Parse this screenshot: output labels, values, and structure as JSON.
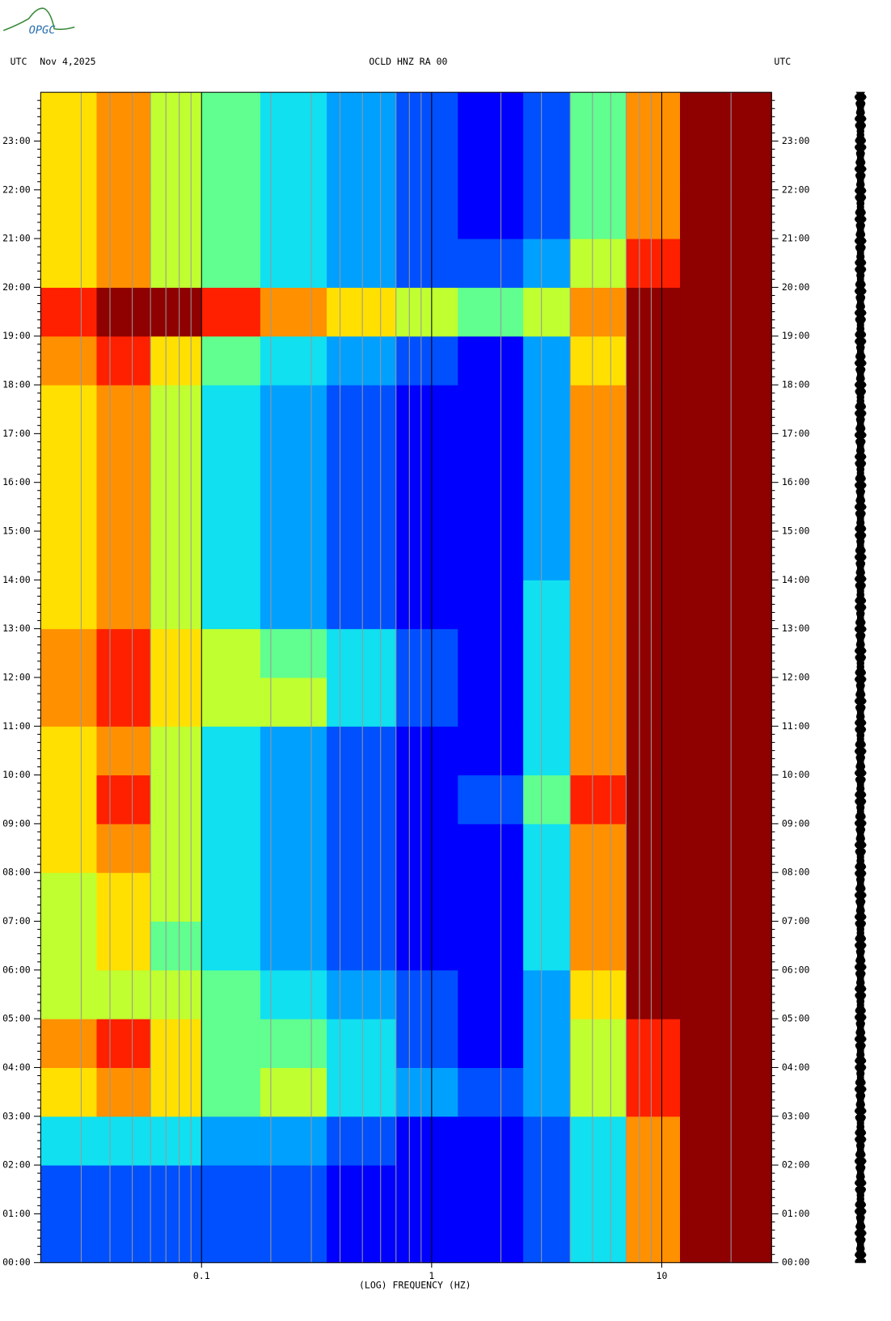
{
  "chart_data": {
    "type": "spectrogram",
    "logo": "OPGC",
    "time_zone": "UTC",
    "date": "Nov 4,2025",
    "title": "OCLD HNZ RA 00",
    "right_time_zone": "UTC",
    "x_label": "(LOG) FREQUENCY (HZ)",
    "x_scale": "log",
    "xlim": [
      0.02,
      30
    ],
    "xticks": [
      0.1,
      1,
      10
    ],
    "ylim": [
      0,
      24
    ],
    "yticks": [
      {
        "value": 0,
        "label": "00:00"
      },
      {
        "value": 1,
        "label": "01:00"
      },
      {
        "value": 2,
        "label": "02:00"
      },
      {
        "value": 3,
        "label": "03:00"
      },
      {
        "value": 4,
        "label": "04:00"
      },
      {
        "value": 5,
        "label": "05:00"
      },
      {
        "value": 6,
        "label": "06:00"
      },
      {
        "value": 7,
        "label": "07:00"
      },
      {
        "value": 8,
        "label": "08:00"
      },
      {
        "value": 9,
        "label": "09:00"
      },
      {
        "value": 10,
        "label": "10:00"
      },
      {
        "value": 11,
        "label": "11:00"
      },
      {
        "value": 12,
        "label": "12:00"
      },
      {
        "value": 13,
        "label": "13:00"
      },
      {
        "value": 14,
        "label": "14:00"
      },
      {
        "value": 15,
        "label": "15:00"
      },
      {
        "value": 16,
        "label": "16:00"
      },
      {
        "value": 17,
        "label": "17:00"
      },
      {
        "value": 18,
        "label": "18:00"
      },
      {
        "value": 19,
        "label": "19:00"
      },
      {
        "value": 20,
        "label": "20:00"
      },
      {
        "value": 21,
        "label": "21:00"
      },
      {
        "value": 22,
        "label": "22:00"
      },
      {
        "value": 23,
        "label": "23:00"
      }
    ],
    "freq_edges": [
      0.02,
      0.035,
      0.06,
      0.1,
      0.18,
      0.35,
      0.7,
      1.3,
      2.5,
      4,
      7,
      12,
      30
    ],
    "hour_edges": [
      0,
      1,
      2,
      3,
      4,
      5,
      6,
      7,
      8,
      9,
      10,
      11,
      12,
      13,
      14,
      15,
      16,
      17,
      18,
      19,
      20,
      21,
      22,
      23,
      24
    ],
    "colormap": [
      "#00008f",
      "#0000ff",
      "#0050ff",
      "#00a0ff",
      "#10e0f0",
      "#60ff90",
      "#c0ff30",
      "#ffe000",
      "#ff9000",
      "#ff2000",
      "#8f0000"
    ],
    "z": [
      [
        2,
        2,
        2,
        2,
        2,
        1,
        1,
        1,
        2,
        4,
        8,
        10
      ],
      [
        2,
        2,
        2,
        2,
        2,
        1,
        1,
        1,
        2,
        4,
        8,
        10
      ],
      [
        4,
        4,
        4,
        3,
        3,
        2,
        1,
        1,
        2,
        4,
        8,
        10
      ],
      [
        7,
        8,
        7,
        5,
        6,
        4,
        3,
        2,
        3,
        6,
        9,
        10
      ],
      [
        8,
        9,
        7,
        5,
        5,
        4,
        2,
        1,
        3,
        6,
        9,
        10
      ],
      [
        6,
        6,
        6,
        5,
        4,
        3,
        2,
        1,
        3,
        7,
        10,
        10
      ],
      [
        6,
        7,
        5,
        4,
        3,
        2,
        1,
        1,
        4,
        8,
        10,
        10
      ],
      [
        6,
        7,
        6,
        4,
        3,
        2,
        1,
        1,
        4,
        8,
        10,
        10
      ],
      [
        7,
        8,
        6,
        4,
        3,
        2,
        1,
        1,
        4,
        8,
        10,
        10
      ],
      [
        7,
        9,
        6,
        4,
        3,
        2,
        1,
        2,
        5,
        9,
        10,
        10
      ],
      [
        7,
        8,
        6,
        4,
        3,
        2,
        1,
        1,
        4,
        8,
        10,
        10
      ],
      [
        8,
        9,
        7,
        6,
        6,
        4,
        2,
        1,
        4,
        8,
        10,
        10
      ],
      [
        8,
        9,
        7,
        6,
        5,
        4,
        2,
        1,
        4,
        8,
        10,
        10
      ],
      [
        7,
        8,
        6,
        4,
        3,
        2,
        1,
        1,
        4,
        8,
        10,
        10
      ],
      [
        7,
        8,
        6,
        4,
        3,
        2,
        1,
        1,
        3,
        8,
        10,
        10
      ],
      [
        7,
        8,
        6,
        4,
        3,
        2,
        1,
        1,
        3,
        8,
        10,
        10
      ],
      [
        7,
        8,
        6,
        4,
        3,
        2,
        1,
        1,
        3,
        8,
        10,
        10
      ],
      [
        7,
        8,
        6,
        4,
        3,
        2,
        1,
        1,
        3,
        8,
        10,
        10
      ],
      [
        8,
        9,
        7,
        5,
        4,
        3,
        2,
        1,
        3,
        7,
        10,
        10
      ],
      [
        9,
        10,
        10,
        9,
        8,
        7,
        6,
        5,
        6,
        8,
        10,
        10
      ],
      [
        7,
        8,
        6,
        5,
        4,
        3,
        2,
        2,
        3,
        6,
        9,
        10
      ],
      [
        7,
        8,
        6,
        5,
        4,
        3,
        2,
        1,
        2,
        5,
        8,
        10
      ],
      [
        7,
        8,
        6,
        5,
        4,
        3,
        2,
        1,
        2,
        5,
        8,
        10
      ],
      [
        7,
        8,
        6,
        5,
        4,
        3,
        2,
        1,
        2,
        5,
        8,
        10
      ]
    ]
  }
}
